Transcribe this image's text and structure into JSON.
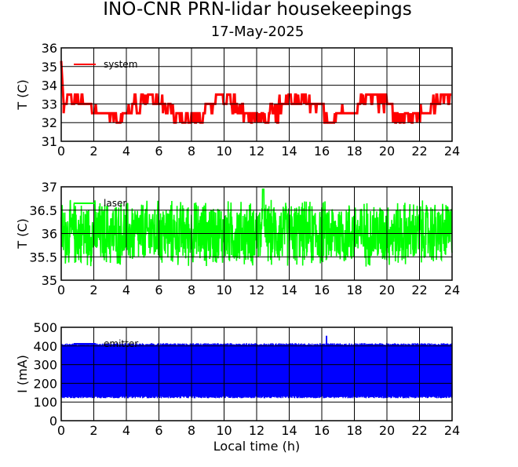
{
  "figure": {
    "title": "INO-CNR PRN-lidar housekeepings",
    "subtitle": "17-May-2025"
  },
  "chart_data": [
    {
      "type": "line",
      "ylabel": "T (C)",
      "xlabel": "",
      "xlim": [
        0,
        24
      ],
      "ylim": [
        31,
        36
      ],
      "xticks": [
        "0",
        "2",
        "4",
        "6",
        "8",
        "10",
        "12",
        "14",
        "16",
        "18",
        "20",
        "22",
        "24"
      ],
      "yticks": [
        "31",
        "32",
        "33",
        "34",
        "35",
        "36"
      ],
      "grid": true,
      "legend_position": "top-left",
      "series": [
        {
          "name": "system",
          "color": "#ff0000",
          "quantized_levels": [
            32,
            32.5,
            33,
            33.5
          ],
          "start_value": 35.3,
          "settle_value": 33.0,
          "settle_time_h": 0.15
        }
      ]
    },
    {
      "type": "line",
      "ylabel": "T (C)",
      "xlabel": "",
      "xlim": [
        0,
        24
      ],
      "ylim": [
        35,
        37
      ],
      "xticks": [
        "0",
        "2",
        "4",
        "6",
        "8",
        "10",
        "12",
        "14",
        "16",
        "18",
        "20",
        "22",
        "24"
      ],
      "yticks": [
        "35",
        "35.5",
        "36",
        "36.5",
        "37"
      ],
      "grid": true,
      "legend_position": "top-left",
      "series": [
        {
          "name": "laser",
          "color": "#00ff00",
          "center_value": 36.0,
          "typical_min": 35.25,
          "typical_max": 36.8,
          "peak_max": 36.95
        }
      ]
    },
    {
      "type": "line",
      "ylabel": "I (mA)",
      "xlabel": "Local time (h)",
      "xlim": [
        0,
        24
      ],
      "ylim": [
        0,
        500
      ],
      "xticks": [
        "0",
        "2",
        "4",
        "6",
        "8",
        "10",
        "12",
        "14",
        "16",
        "18",
        "20",
        "22",
        "24"
      ],
      "yticks": [
        "0",
        "100",
        "200",
        "300",
        "400",
        "500"
      ],
      "grid": true,
      "legend_position": "top-left",
      "series": [
        {
          "name": "emitter",
          "color": "#0000ff",
          "band_min": 120,
          "band_max": 415,
          "peak_max": 455,
          "peak_time_h": 16.3
        }
      ]
    }
  ]
}
